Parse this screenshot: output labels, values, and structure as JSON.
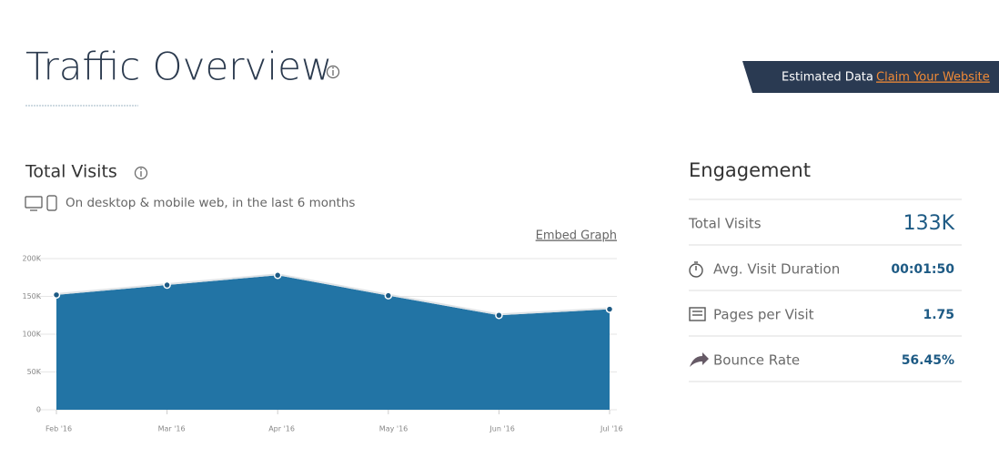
{
  "header": {
    "title": "Traffic Overview",
    "badge": "Estimated Data",
    "link": "Claim Your Website"
  },
  "chart_data": {
    "type": "area",
    "title": "Total Visits",
    "subtitle": "On desktop & mobile web, in the last 6 months",
    "link": "Embed Graph",
    "categories": [
      "Feb '16",
      "Mar '16",
      "Apr '16",
      "May '16",
      "Jun '16",
      "Jul '16"
    ],
    "values": [
      152,
      165,
      178,
      151,
      125,
      133
    ],
    "color": "#2274a5",
    "ylim": [
      0,
      200
    ],
    "yticks": [
      0,
      {
        "value": 50,
        "label": "50K"
      },
      {
        "value": 100,
        "label": "100K"
      },
      {
        "value": 150,
        "label": "150K"
      },
      {
        "value": 200,
        "label": "200K"
      }
    ],
    "grid": true
  },
  "engagement": {
    "title": "Engagement",
    "rows": [
      {
        "label": "Total Visits",
        "value": "133K"
      },
      {
        "label": "Avg. Visit Duration",
        "value": "00:01:50"
      },
      {
        "label": "Pages per Visit",
        "value": "1.75"
      },
      {
        "label": "Bounce Rate",
        "value": "56.45%"
      }
    ]
  }
}
